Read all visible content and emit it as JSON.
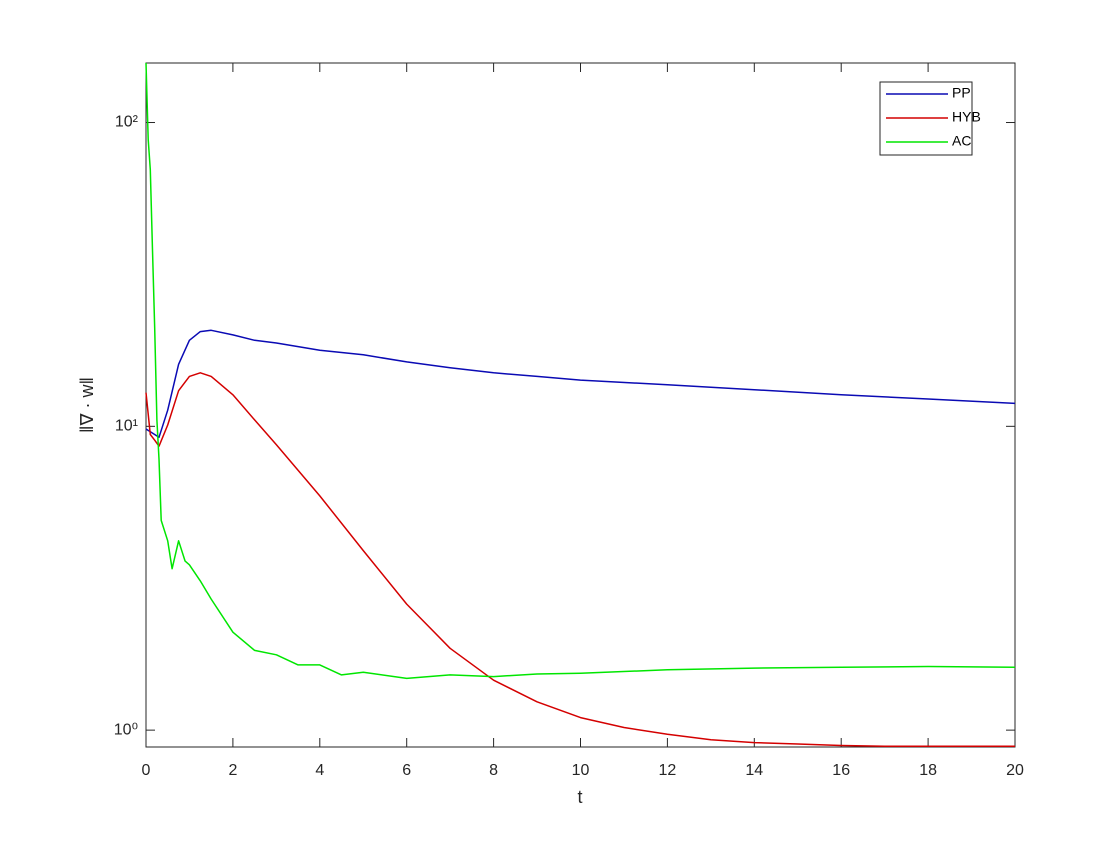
{
  "chart_data": {
    "type": "line",
    "xlabel": "t",
    "ylabel": "‖∇ · w‖",
    "xlim": [
      0,
      20
    ],
    "xticks": [
      0,
      2,
      4,
      6,
      8,
      10,
      12,
      14,
      16,
      18,
      20
    ],
    "ylim": [
      0.88,
      157
    ],
    "yscale": "log",
    "yticks": [
      {
        "value": 1,
        "label": "10⁰"
      },
      {
        "value": 10,
        "label": "10¹"
      },
      {
        "value": 100,
        "label": "10²"
      }
    ],
    "legend": "upper right",
    "series": [
      {
        "name": "PP",
        "color": "#0a0ab4",
        "x": [
          0,
          0.3,
          0.5,
          0.75,
          1,
          1.25,
          1.5,
          2,
          2.5,
          3,
          4,
          5,
          6,
          7,
          8,
          9,
          10,
          12,
          14,
          16,
          18,
          20
        ],
        "values": [
          9.8,
          9.2,
          11.3,
          16,
          19.2,
          20.5,
          20.7,
          20,
          19.2,
          18.8,
          17.8,
          17.2,
          16.3,
          15.6,
          15,
          14.6,
          14.2,
          13.7,
          13.2,
          12.7,
          12.3,
          11.9
        ]
      },
      {
        "name": "HYB",
        "color": "#d40000",
        "x": [
          0,
          0.1,
          0.2,
          0.3,
          0.5,
          0.75,
          1,
          1.25,
          1.5,
          2,
          2.5,
          3,
          4,
          5,
          6,
          7,
          8,
          9,
          10,
          11,
          12,
          13,
          14,
          15,
          16,
          17,
          18,
          19,
          20
        ],
        "values": [
          12.9,
          9.4,
          9.0,
          8.6,
          10.1,
          13.1,
          14.6,
          15,
          14.6,
          12.7,
          10.5,
          8.7,
          5.9,
          3.9,
          2.6,
          1.86,
          1.46,
          1.24,
          1.1,
          1.02,
          0.97,
          0.93,
          0.91,
          0.9,
          0.89,
          0.885,
          0.885,
          0.885,
          0.885
        ]
      },
      {
        "name": "AC",
        "color": "#00e600",
        "x": [
          0,
          0.05,
          0.1,
          0.15,
          0.2,
          0.25,
          0.3,
          0.35,
          0.5,
          0.6,
          0.75,
          0.9,
          1,
          1.25,
          1.5,
          2,
          2.5,
          3,
          3.5,
          4,
          4.5,
          5,
          6,
          7,
          8,
          9,
          10,
          12,
          14,
          16,
          18,
          20
        ],
        "values": [
          157,
          88,
          70,
          38,
          21,
          10.5,
          7.8,
          4.9,
          4.2,
          3.4,
          4.2,
          3.6,
          3.5,
          3.1,
          2.7,
          2.1,
          1.83,
          1.77,
          1.64,
          1.64,
          1.52,
          1.55,
          1.48,
          1.52,
          1.5,
          1.53,
          1.54,
          1.58,
          1.6,
          1.61,
          1.62,
          1.61
        ]
      }
    ]
  }
}
